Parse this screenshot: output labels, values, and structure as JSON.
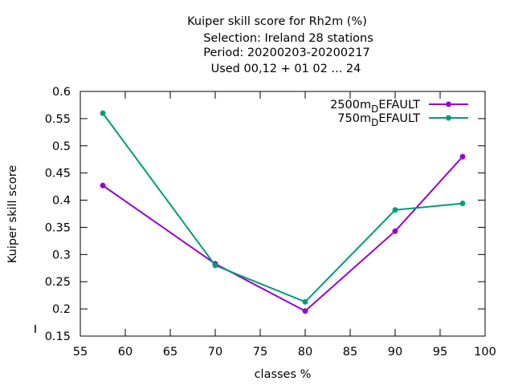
{
  "chart_data": {
    "type": "line",
    "title_lines": [
      "Kuiper skill score  for Rh2m (%)",
      "Selection: Ireland     28 stations",
      "Period: 20200203-20200217",
      "Used  00,12  + 01 02 ... 24"
    ],
    "xlabel": "classes %",
    "ylabel": "Kuiper skill score",
    "xlim": [
      55,
      100
    ],
    "ylim": [
      0.15,
      0.6
    ],
    "x_ticks": [
      55,
      60,
      65,
      70,
      75,
      80,
      85,
      90,
      95,
      100
    ],
    "y_ticks": [
      0.15,
      0.2,
      0.25,
      0.3,
      0.35,
      0.4,
      0.45,
      0.5,
      0.55,
      0.6
    ],
    "x_tick_labels": [
      "55",
      "60",
      "65",
      "70",
      "75",
      "80",
      "85",
      "90",
      "95",
      "100"
    ],
    "y_tick_labels": [
      "0.15",
      "0.2",
      "0.25",
      "0.3",
      "0.35",
      "0.4",
      "0.45",
      "0.5",
      "0.55",
      "0.6"
    ],
    "legend_position": "top-right",
    "series": [
      {
        "name": "2500m_DEFAULT",
        "legend_main": "2500m",
        "legend_sub": "D",
        "legend_rest": "EFAULT",
        "color": "#9400d3",
        "x": [
          57.5,
          70,
          80,
          90,
          97.5
        ],
        "y": [
          0.427,
          0.283,
          0.196,
          0.343,
          0.48
        ]
      },
      {
        "name": "750m_DEFAULT",
        "legend_main": "750m",
        "legend_sub": "D",
        "legend_rest": "EFAULT",
        "color": "#009e73",
        "x": [
          57.5,
          70,
          80,
          90,
          97.5
        ],
        "y": [
          0.56,
          0.28,
          0.213,
          0.382,
          0.394
        ]
      }
    ]
  }
}
